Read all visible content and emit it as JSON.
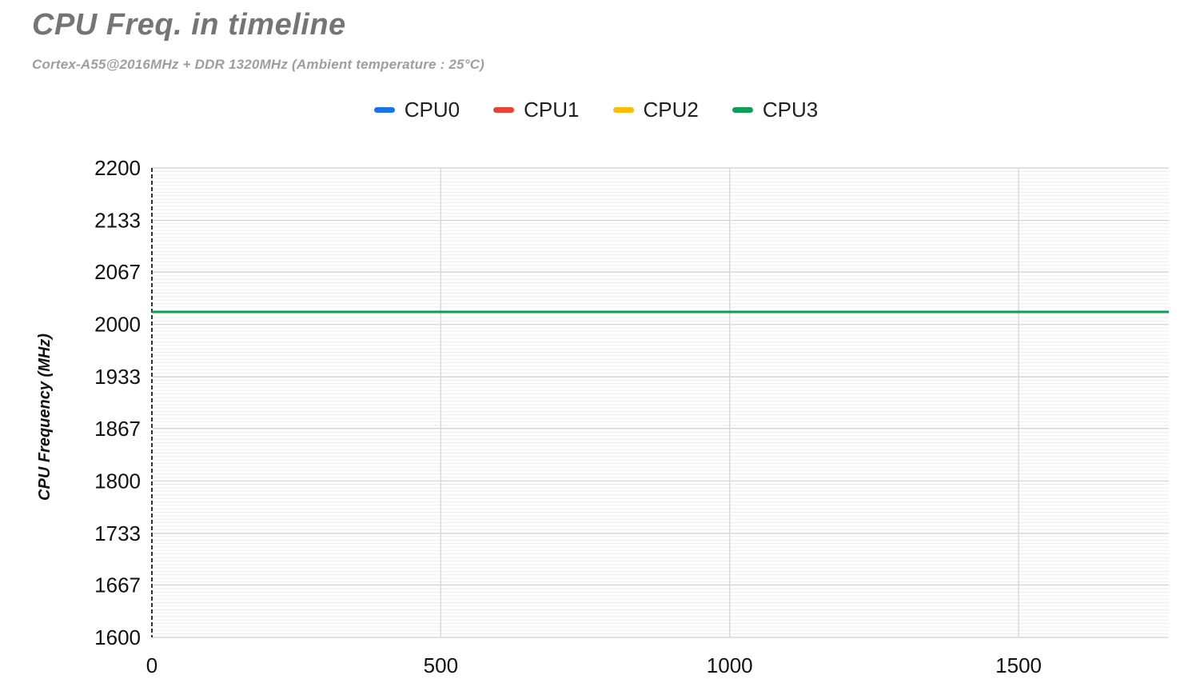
{
  "header": {
    "title": "CPU Freq. in timeline",
    "subtitle": "Cortex-A55@2016MHz + DDR 1320MHz (Ambient temperature : 25°C)"
  },
  "legend": {
    "position": "top",
    "items": [
      {
        "label": "CPU0",
        "color": "#1A73E8"
      },
      {
        "label": "CPU1",
        "color": "#EA4335"
      },
      {
        "label": "CPU2",
        "color": "#FBBC04"
      },
      {
        "label": "CPU3",
        "color": "#0F9D58"
      }
    ]
  },
  "chart_data": {
    "type": "line",
    "title": "CPU Freq. in timeline",
    "subtitle": "Cortex-A55@2016MHz + DDR 1320MHz (Ambient temperature : 25°C)",
    "xlabel": "",
    "ylabel": "CPU Frequency (MHz)",
    "x": [
      0,
      1760
    ],
    "series": [
      {
        "name": "CPU0",
        "color": "#1A73E8",
        "values": [
          2016,
          2016
        ]
      },
      {
        "name": "CPU1",
        "color": "#EA4335",
        "values": [
          2016,
          2016
        ]
      },
      {
        "name": "CPU2",
        "color": "#FBBC04",
        "values": [
          2016,
          2016
        ]
      },
      {
        "name": "CPU3",
        "color": "#0F9D58",
        "values": [
          2016,
          2016
        ]
      }
    ],
    "overlap_note": "All four CPU series are constant at 2016 MHz and overlap; only CPU3 (green, drawn last) is visible",
    "xlim": [
      0,
      1760
    ],
    "ylim": [
      1600,
      2200
    ],
    "x_ticks": [
      0,
      500,
      1000,
      1500
    ],
    "y_ticks": [
      1600,
      1667,
      1733,
      1800,
      1867,
      1933,
      2000,
      2067,
      2133,
      2200
    ],
    "legend_position": "top",
    "grid": {
      "horizontal_major": true,
      "horizontal_minor_per_major": 15,
      "vertical_at_x_ticks": true
    },
    "colors": {
      "major_grid": "#cfcfcf",
      "minor_grid": "#ededed",
      "vertical_grid": "#d9d9d9",
      "axis_line": "#333333",
      "tick_label": "#111111",
      "title": "#757575",
      "subtitle": "#9e9e9e"
    }
  }
}
